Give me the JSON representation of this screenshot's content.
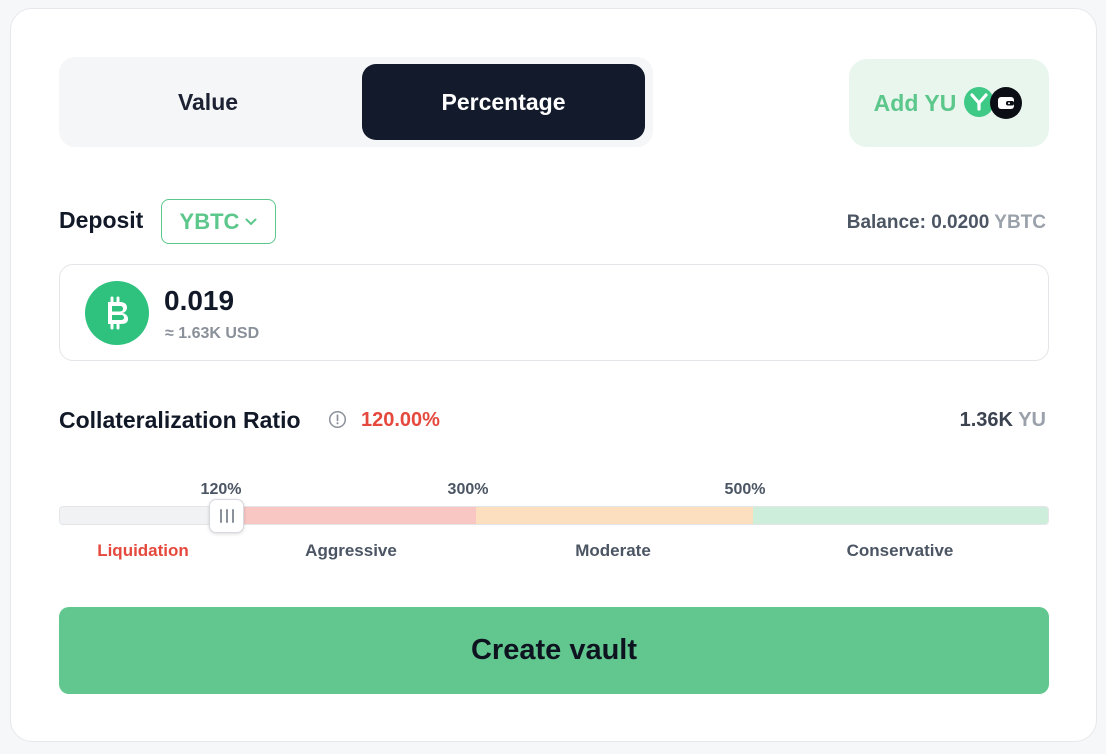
{
  "mode_toggle": {
    "options": [
      "Value",
      "Percentage"
    ],
    "selected": "Percentage"
  },
  "add_yu": {
    "label": "Add YU",
    "icons": [
      "yu-coin-icon",
      "wallet-icon"
    ]
  },
  "deposit": {
    "label": "Deposit",
    "token": "YBTC",
    "balance_label": "Balance:",
    "balance_value": "0.0200",
    "balance_unit": "YBTC",
    "amount": "0.019",
    "amount_usd": "≈ 1.63K USD",
    "token_icon": "bitcoin-icon"
  },
  "collateralization": {
    "label": "Collateralization Ratio",
    "value": "120.00%",
    "yu_amount": "1.36K",
    "yu_unit": "YU",
    "slider_value_percent": 120,
    "ticks": [
      "120%",
      "300%",
      "500%"
    ],
    "zones": [
      "Liquidation",
      "Aggressive",
      "Moderate",
      "Conservative"
    ]
  },
  "actions": {
    "create_vault": "Create vault"
  },
  "colors": {
    "accent_green": "#5cc78b",
    "danger_red": "#e5483c",
    "dark_navy": "#121a2c",
    "zone_liquidation": "#f1f2f4",
    "zone_aggressive": "#f8c6c3",
    "zone_moderate": "#fbdfbe",
    "zone_conservative": "#cdeedb"
  }
}
